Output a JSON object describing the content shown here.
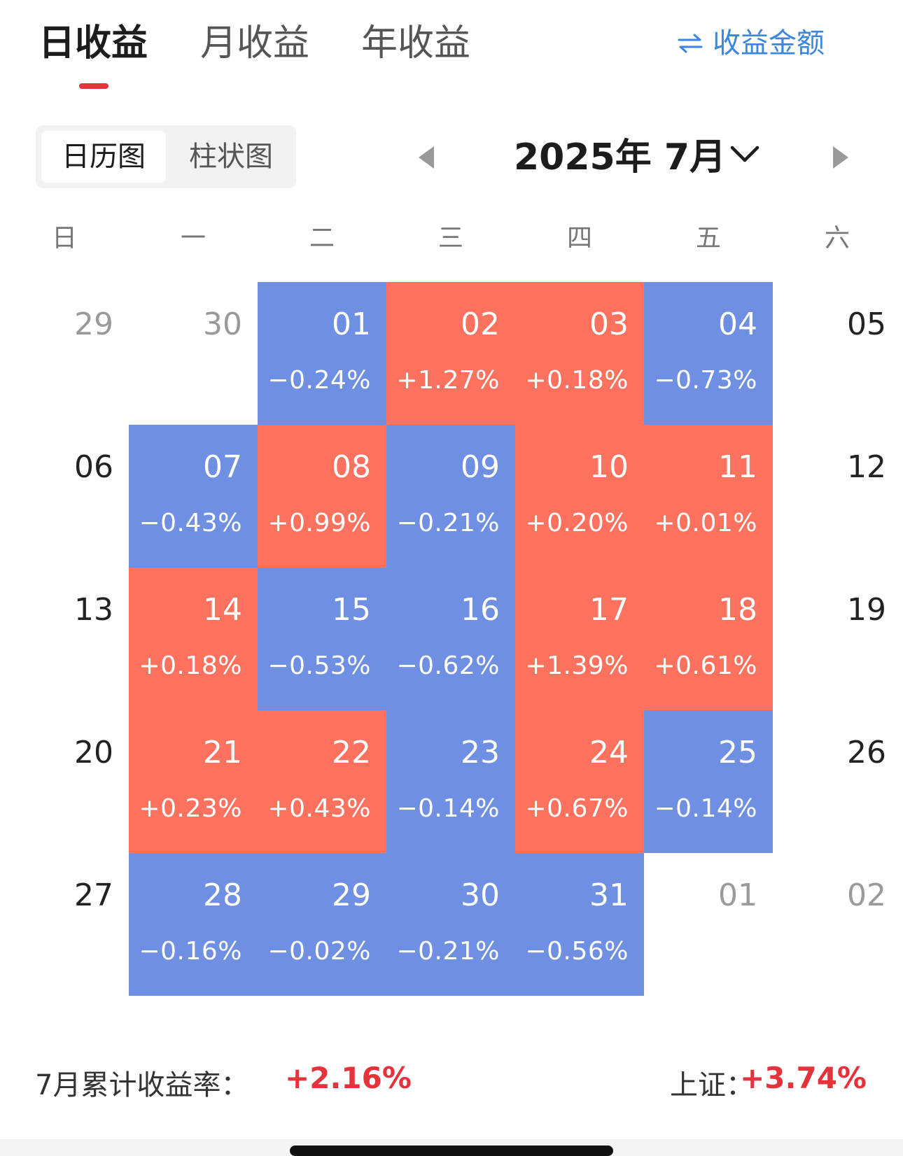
{
  "tabs": [
    {
      "label": "日收益",
      "active": true
    },
    {
      "label": "月收益",
      "active": false
    },
    {
      "label": "年收益",
      "active": false
    }
  ],
  "toggle": {
    "label": "收益金额",
    "icon": "swap-arrows-icon"
  },
  "view_switch": {
    "calendar": "日历图",
    "bar": "柱状图",
    "selected": "日历图"
  },
  "month_nav": {
    "label": "2025年 7月",
    "prev_icon": "triangle-left-icon",
    "next_icon": "triangle-right-icon",
    "dropdown_icon": "chevron-down-icon"
  },
  "weekdays": [
    "日",
    "一",
    "二",
    "三",
    "四",
    "五",
    "六"
  ],
  "colors": {
    "gain": "#fd725f",
    "loss": "#6f8fe3",
    "accent_red": "#e5333b",
    "link_blue": "#3c86e0"
  },
  "calendar": {
    "weeks": [
      [
        {
          "day": "29",
          "type": "other"
        },
        {
          "day": "30",
          "type": "other"
        },
        {
          "day": "01",
          "pct": "−0.24%",
          "type": "down"
        },
        {
          "day": "02",
          "pct": "+1.27%",
          "type": "up"
        },
        {
          "day": "03",
          "pct": "+0.18%",
          "type": "up"
        },
        {
          "day": "04",
          "pct": "−0.73%",
          "type": "down"
        },
        {
          "day": "05",
          "type": "weekend"
        }
      ],
      [
        {
          "day": "06",
          "type": "weekend"
        },
        {
          "day": "07",
          "pct": "−0.43%",
          "type": "down"
        },
        {
          "day": "08",
          "pct": "+0.99%",
          "type": "up"
        },
        {
          "day": "09",
          "pct": "−0.21%",
          "type": "down"
        },
        {
          "day": "10",
          "pct": "+0.20%",
          "type": "up"
        },
        {
          "day": "11",
          "pct": "+0.01%",
          "type": "up"
        },
        {
          "day": "12",
          "type": "weekend"
        }
      ],
      [
        {
          "day": "13",
          "type": "weekend"
        },
        {
          "day": "14",
          "pct": "+0.18%",
          "type": "up"
        },
        {
          "day": "15",
          "pct": "−0.53%",
          "type": "down"
        },
        {
          "day": "16",
          "pct": "−0.62%",
          "type": "down"
        },
        {
          "day": "17",
          "pct": "+1.39%",
          "type": "up"
        },
        {
          "day": "18",
          "pct": "+0.61%",
          "type": "up"
        },
        {
          "day": "19",
          "type": "weekend"
        }
      ],
      [
        {
          "day": "20",
          "type": "weekend"
        },
        {
          "day": "21",
          "pct": "+0.23%",
          "type": "up"
        },
        {
          "day": "22",
          "pct": "+0.43%",
          "type": "up"
        },
        {
          "day": "23",
          "pct": "−0.14%",
          "type": "down"
        },
        {
          "day": "24",
          "pct": "+0.67%",
          "type": "up"
        },
        {
          "day": "25",
          "pct": "−0.14%",
          "type": "down"
        },
        {
          "day": "26",
          "type": "weekend"
        }
      ],
      [
        {
          "day": "27",
          "type": "weekend"
        },
        {
          "day": "28",
          "pct": "−0.16%",
          "type": "down"
        },
        {
          "day": "29",
          "pct": "−0.02%",
          "type": "down"
        },
        {
          "day": "30",
          "pct": "−0.21%",
          "type": "down"
        },
        {
          "day": "31",
          "pct": "−0.56%",
          "type": "down"
        },
        {
          "day": "01",
          "type": "other"
        },
        {
          "day": "02",
          "type": "other"
        }
      ]
    ]
  },
  "summary": {
    "label": "7月累计收益率：",
    "value": "+2.16%",
    "index_label": "上证：",
    "index_value": "+3.74%"
  }
}
